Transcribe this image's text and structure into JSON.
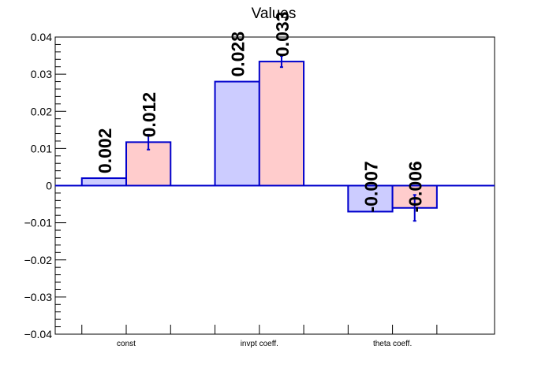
{
  "chart_data": {
    "type": "bar",
    "title": "Values",
    "xlabel": "",
    "ylabel": "",
    "categories": [
      "const",
      "invpt coeff.",
      "theta coeff."
    ],
    "ylim": [
      -0.04,
      0.04
    ],
    "yticks": [
      0.04,
      0.03,
      0.02,
      0.01,
      0,
      -0.01,
      -0.02,
      -0.03,
      -0.04
    ],
    "ytick_labels": [
      "0.04",
      "0.03",
      "0.02",
      "0.01",
      "0",
      "−0.01",
      "−0.02",
      "−0.03",
      "−0.04"
    ],
    "series": [
      {
        "values": [
          0.002,
          0.028,
          -0.007
        ],
        "labels": [
          "0.002",
          "0.028",
          "-0.007"
        ],
        "errors": [
          null,
          null,
          null
        ],
        "fill": "#ccccff",
        "stroke": "#0000cc"
      },
      {
        "values": [
          0.0117,
          0.0334,
          -0.006
        ],
        "labels": [
          "0.012",
          "0.033",
          "-0.006"
        ],
        "errors": [
          0.002,
          0.0015,
          0.0035
        ],
        "fill": "#ffcccc",
        "stroke": "#0000cc"
      }
    ],
    "grid": false,
    "legend": "none"
  }
}
